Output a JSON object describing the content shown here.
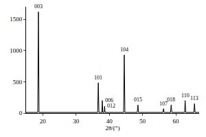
{
  "chart_data": {
    "type": "line",
    "x_label": "2θ/(°)",
    "x": [
      15,
      18.5,
      18.7,
      18.9,
      36.5,
      36.7,
      36.9,
      37.75,
      37.9,
      38.05,
      38.45,
      38.6,
      38.75,
      44.3,
      44.5,
      44.7,
      48.4,
      48.6,
      48.8,
      56.1,
      56.3,
      56.5,
      58.4,
      58.6,
      58.8,
      62.6,
      62.8,
      63.0,
      65.4,
      65.6,
      65.8,
      67
    ],
    "values": [
      10,
      10,
      1620,
      10,
      10,
      485,
      10,
      10,
      200,
      10,
      10,
      110,
      10,
      10,
      930,
      10,
      10,
      130,
      10,
      10,
      70,
      10,
      10,
      130,
      10,
      10,
      200,
      10,
      10,
      150,
      10,
      10
    ],
    "color": "#000000",
    "xlim": [
      15,
      67
    ],
    "xticks": [
      20,
      30,
      40,
      50,
      60
    ],
    "ylim": [
      0,
      1700
    ],
    "yticks": [
      0,
      500,
      1000,
      1500
    ],
    "grid": false,
    "annotations": [
      {
        "text": "003",
        "x": 18.7,
        "y": 1620
      },
      {
        "text": "101",
        "x": 36.7,
        "y": 485
      },
      {
        "text": "006",
        "x": 37.9,
        "y": 200
      },
      {
        "text": "012",
        "x": 38.6,
        "y": 110
      },
      {
        "text": "104",
        "x": 44.5,
        "y": 930
      },
      {
        "text": "015",
        "x": 48.6,
        "y": 130
      },
      {
        "text": "107",
        "x": 56.3,
        "y": 70
      },
      {
        "text": "018",
        "x": 58.6,
        "y": 130
      },
      {
        "text": "110",
        "x": 62.8,
        "y": 200
      },
      {
        "text": "113",
        "x": 65.6,
        "y": 150
      }
    ]
  }
}
